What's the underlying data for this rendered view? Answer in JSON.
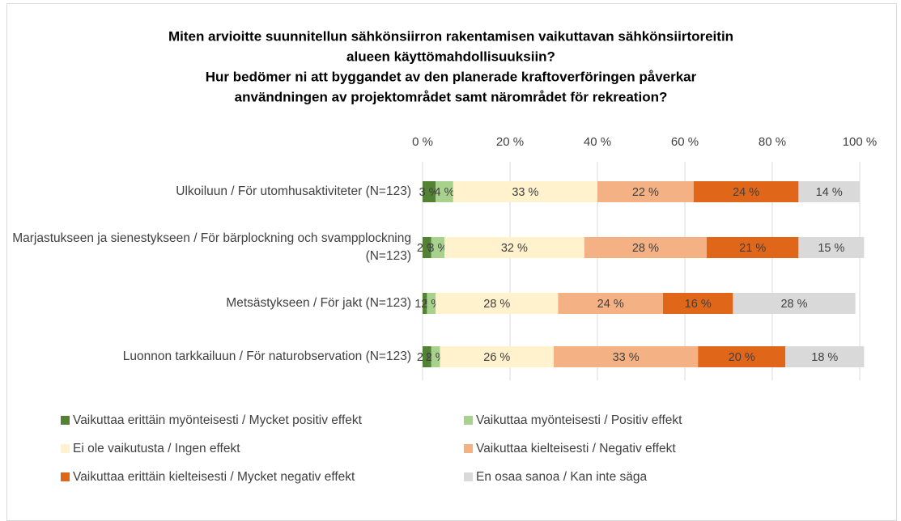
{
  "chart_data": {
    "type": "bar",
    "orientation": "horizontal",
    "stacked": true,
    "title": [
      "Miten arvioitte suunnitellun sähkönsiirron rakentamisen vaikuttavan sähkönsiirtoreitin",
      "alueen käyttömahdollisuuksiin?",
      "Hur bedömer ni att byggandet av den planerade kraftoverföringen påverkar",
      "användningen av projektområdet samt närområdet för rekreation?"
    ],
    "categories": [
      "Ulkoiluun / För utomhusaktiviteter (N=123)",
      "Marjastukseen ja sienestykseen / För bärplockning och svampplockning (N=123)",
      "Metsästykseen / För jakt (N=123)",
      "Luonnon tarkkailuun / För naturobservation (N=123)"
    ],
    "xlim": [
      0,
      100
    ],
    "xticks": [
      {
        "value": 0,
        "label": "0 %"
      },
      {
        "value": 20,
        "label": "20 %"
      },
      {
        "value": 40,
        "label": "40 %"
      },
      {
        "value": 60,
        "label": "60 %"
      },
      {
        "value": 80,
        "label": "80 %"
      },
      {
        "value": 100,
        "label": "100 %"
      }
    ],
    "grid": true,
    "series": [
      {
        "name": "Vaikuttaa erittäin myönteisesti / Mycket positiv effekt",
        "color": "#548235",
        "values": [
          3,
          2,
          1,
          2
        ],
        "value_labels": [
          "3 %",
          "2 %",
          "1 %",
          "2 %"
        ]
      },
      {
        "name": "Vaikuttaa myönteisesti / Positiv effekt",
        "color": "#a9d18e",
        "values": [
          4,
          3,
          2,
          2
        ],
        "value_labels": [
          "4 %",
          "3 %",
          "2 %",
          "2 %"
        ]
      },
      {
        "name": "Ei ole vaikutusta / Ingen effekt",
        "color": "#fff2cc",
        "values": [
          33,
          32,
          28,
          26
        ],
        "value_labels": [
          "33 %",
          "32 %",
          "28 %",
          "26 %"
        ]
      },
      {
        "name": "Vaikuttaa kielteisesti / Negativ effekt",
        "color": "#f4b183",
        "values": [
          22,
          28,
          24,
          33
        ],
        "value_labels": [
          "22 %",
          "28 %",
          "24 %",
          "33 %"
        ]
      },
      {
        "name": "Vaikuttaa erittäin kielteisesti / Mycket negativ effekt",
        "color": "#e0661a",
        "values": [
          24,
          21,
          16,
          20
        ],
        "value_labels": [
          "24 %",
          "21 %",
          "16 %",
          "20 %"
        ]
      },
      {
        "name": "En osaa sanoa / Kan inte säga",
        "color": "#d9d9d9",
        "values": [
          14,
          15,
          28,
          18
        ],
        "value_labels": [
          "14 %",
          "15 %",
          "28 %",
          "18 %"
        ]
      }
    ]
  }
}
